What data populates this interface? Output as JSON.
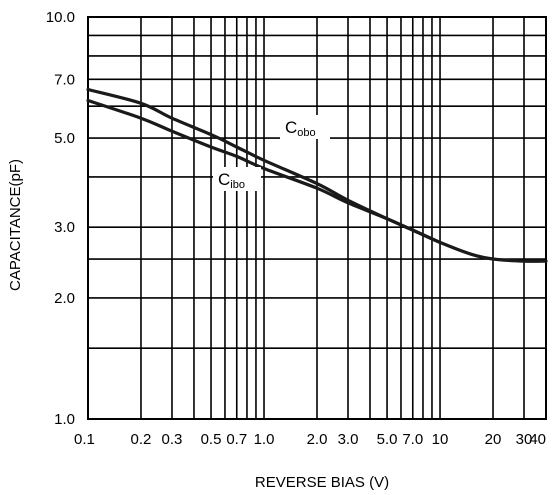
{
  "chart_data": {
    "type": "line",
    "xscale": "log",
    "yscale": "log",
    "xlim": [
      0.1,
      40
    ],
    "ylim": [
      1.0,
      10.0
    ],
    "xlabel": "REVERSE BIAS (V)",
    "ylabel": "CAPACITANCE(pF)",
    "grid": true,
    "x_ticks": [
      0.1,
      0.2,
      0.3,
      0.5,
      0.7,
      1.0,
      2.0,
      3.0,
      5.0,
      7.0,
      10,
      20,
      30,
      40
    ],
    "x_tick_labels": [
      "0.1",
      "0.2",
      "0.3",
      "0.5",
      "0.7",
      "1.0",
      "2.0",
      "3.0",
      "5.0",
      "7.0",
      "10",
      "20",
      "30",
      "40"
    ],
    "y_ticks": [
      1.0,
      2.0,
      3.0,
      5.0,
      7.0,
      10.0
    ],
    "y_tick_labels": [
      "1.0",
      "2.0",
      "3.0",
      "5.0",
      "7.0",
      "10.0"
    ],
    "x_grid": [
      0.1,
      0.2,
      0.3,
      0.4,
      0.5,
      0.6,
      0.7,
      0.8,
      0.9,
      1.0,
      2,
      3,
      4,
      5,
      6,
      7,
      8,
      9,
      10,
      20,
      30,
      40
    ],
    "y_grid": [
      1,
      1.5,
      2,
      2.5,
      3,
      4,
      5,
      6,
      7,
      8,
      9,
      10
    ],
    "series": [
      {
        "name_main": "C",
        "name_sub": "obo",
        "x": [
          0.1,
          0.2,
          0.3,
          0.5,
          0.7,
          1.0,
          2.0,
          3.0,
          5.0,
          7.0,
          10,
          15,
          20,
          30,
          40
        ],
        "y": [
          6.6,
          6.1,
          5.6,
          5.1,
          4.75,
          4.4,
          3.85,
          3.5,
          3.15,
          2.95,
          2.75,
          2.57,
          2.5,
          2.47,
          2.47
        ]
      },
      {
        "name_main": "C",
        "name_sub": "ibo",
        "x": [
          0.1,
          0.2,
          0.3,
          0.5,
          0.7,
          1.0,
          2.0,
          3.0,
          5.0,
          7.0,
          10
        ],
        "y": [
          6.2,
          5.6,
          5.2,
          4.75,
          4.5,
          4.2,
          3.75,
          3.45,
          3.15,
          2.95,
          2.75
        ]
      }
    ]
  }
}
